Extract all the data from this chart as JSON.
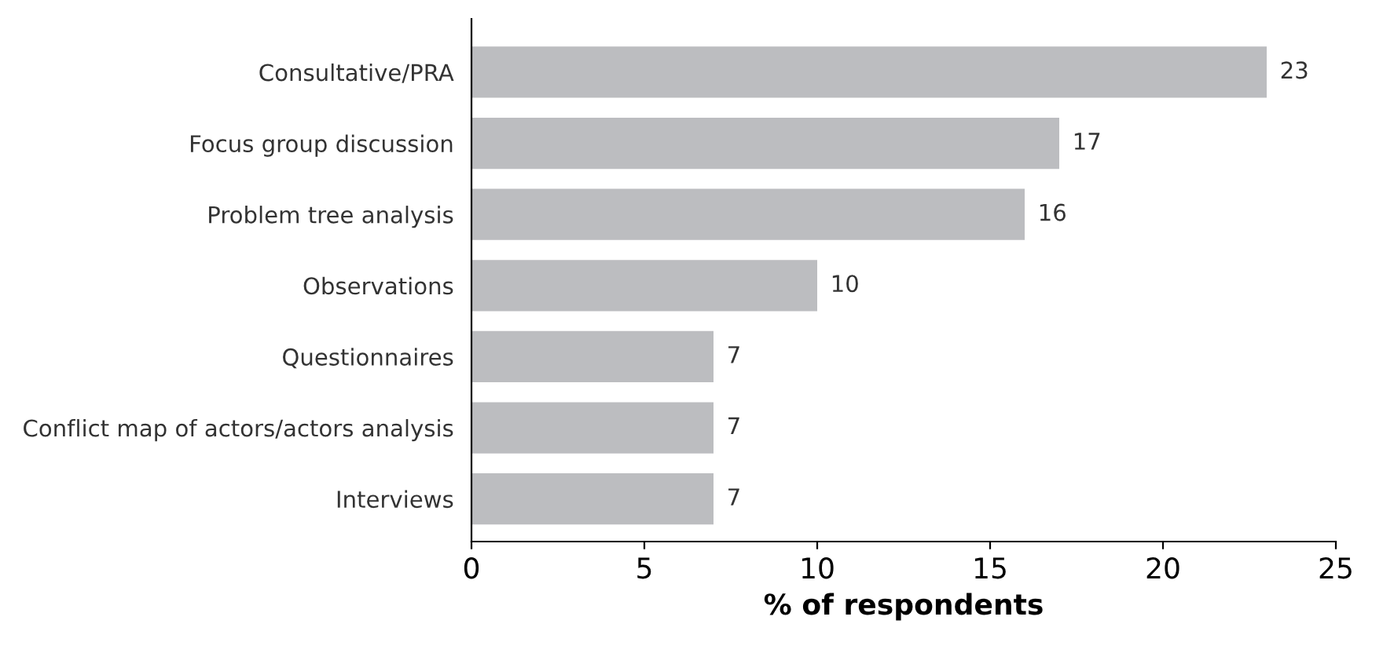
{
  "chart_data": {
    "type": "bar",
    "orientation": "horizontal",
    "xlabel": "% of respondents",
    "categories": [
      "Consultative/PRA",
      "Focus group discussion",
      "Problem tree analysis",
      "Observations",
      "Questionnaires",
      "Conflict map of actors/actors analysis",
      "Interviews"
    ],
    "values": [
      23,
      17,
      16,
      10,
      7,
      7,
      7
    ],
    "color": "#bcbdc0",
    "xlim": [
      0,
      25
    ],
    "xticks": [
      0,
      5,
      10,
      15,
      20,
      25
    ],
    "data_labels": true,
    "grid": false
  }
}
